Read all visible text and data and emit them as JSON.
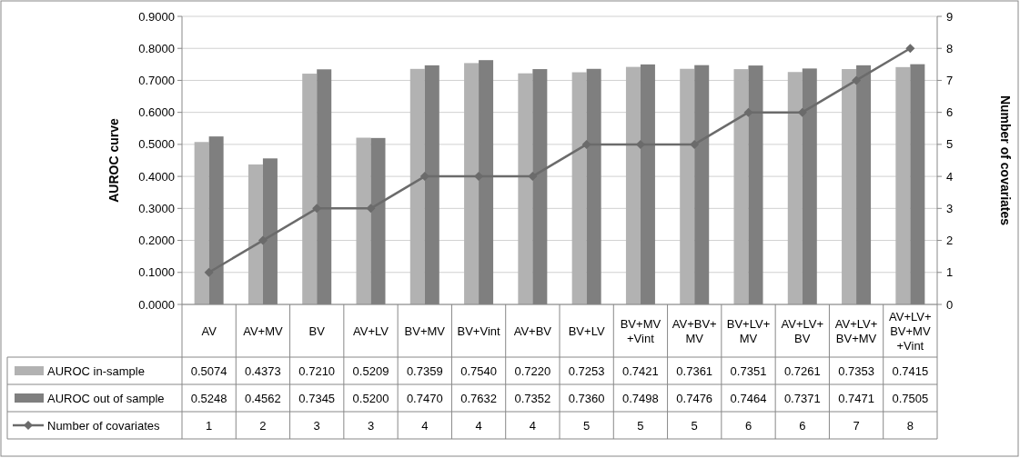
{
  "chart_data": {
    "type": "bar",
    "ylabel": "AUROC curve",
    "y2label": "Number of covariates",
    "categories": [
      "AV",
      "AV+MV",
      "BV",
      "AV+LV",
      "BV+MV",
      "BV+Vint",
      "AV+BV",
      "BV+LV",
      "BV+MV\n+Vint",
      "AV+BV+\nMV",
      "BV+LV+\nMV",
      "AV+LV+\nBV",
      "AV+LV+\nBV+MV",
      "AV+LV+\nBV+MV\n+Vint"
    ],
    "series": [
      {
        "name": "AUROC in-sample",
        "color": "#b2b2b2",
        "values": [
          0.5074,
          0.4373,
          0.721,
          0.5209,
          0.7359,
          0.754,
          0.722,
          0.7253,
          0.7421,
          0.7361,
          0.7351,
          0.7261,
          0.7353,
          0.7415
        ],
        "value_labels": [
          "0.5074",
          "0.4373",
          "0.7210",
          "0.5209",
          "0.7359",
          "0.7540",
          "0.7220",
          "0.7253",
          "0.7421",
          "0.7361",
          "0.7351",
          "0.7261",
          "0.7353",
          "0.7415"
        ]
      },
      {
        "name": "AUROC out of sample",
        "color": "#7f7f7f",
        "values": [
          0.5248,
          0.4562,
          0.7345,
          0.52,
          0.747,
          0.7632,
          0.7352,
          0.736,
          0.7498,
          0.7476,
          0.7464,
          0.7371,
          0.7471,
          0.7505
        ],
        "value_labels": [
          "0.5248",
          "0.4562",
          "0.7345",
          "0.5200",
          "0.7470",
          "0.7632",
          "0.7352",
          "0.7360",
          "0.7498",
          "0.7476",
          "0.7464",
          "0.7371",
          "0.7471",
          "0.7505"
        ]
      },
      {
        "name": "Number of covariates",
        "type": "line",
        "axis": "y2",
        "color": "#6b6b6b",
        "marker": "diamond",
        "values": [
          1,
          2,
          3,
          3,
          4,
          4,
          4,
          5,
          5,
          5,
          6,
          6,
          7,
          8
        ],
        "value_labels": [
          "1",
          "2",
          "3",
          "3",
          "4",
          "4",
          "4",
          "5",
          "5",
          "5",
          "6",
          "6",
          "7",
          "8"
        ]
      }
    ],
    "ylim": [
      0,
      0.9
    ],
    "yticks": [
      {
        "value": 0,
        "label": "0.0000"
      },
      {
        "value": 0.1,
        "label": "0.1000"
      },
      {
        "value": 0.2,
        "label": "0.2000"
      },
      {
        "value": 0.3,
        "label": "0.3000"
      },
      {
        "value": 0.4,
        "label": "0.4000"
      },
      {
        "value": 0.5,
        "label": "0.5000"
      },
      {
        "value": 0.6,
        "label": "0.6000"
      },
      {
        "value": 0.7,
        "label": "0.7000"
      },
      {
        "value": 0.8,
        "label": "0.8000"
      },
      {
        "value": 0.9,
        "label": "0.9000"
      }
    ],
    "y2lim": [
      0,
      9
    ],
    "y2ticks": [
      0,
      1,
      2,
      3,
      4,
      5,
      6,
      7,
      8,
      9
    ],
    "grid": "y",
    "legend": "bottom"
  }
}
